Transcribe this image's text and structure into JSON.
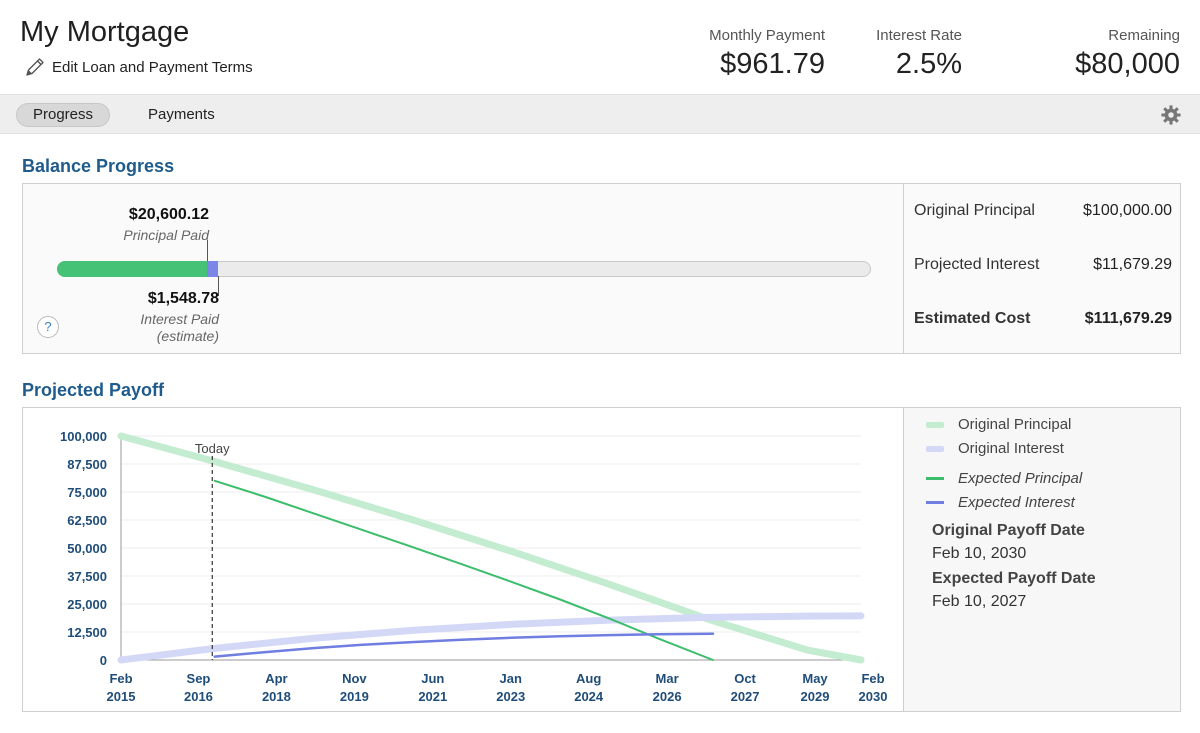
{
  "header": {
    "title": "My Mortgage",
    "edit_label": "Edit Loan and Payment Terms",
    "stats": {
      "monthly_payment_label": "Monthly Payment",
      "monthly_payment_value": "$961.79",
      "interest_rate_label": "Interest Rate",
      "interest_rate_value": "2.5%",
      "remaining_label": "Remaining",
      "remaining_value": "$80,000"
    }
  },
  "tabs": {
    "progress": "Progress",
    "payments": "Payments"
  },
  "balance": {
    "section_title": "Balance Progress",
    "principal_paid_amount": "$20,600.12",
    "principal_paid_label": "Principal Paid",
    "interest_paid_amount": "$1,548.78",
    "interest_paid_label": "Interest Paid",
    "interest_paid_note": "(estimate)",
    "principal_fraction": 0.184,
    "interest_fraction": 0.014,
    "help": "?",
    "summary": {
      "original_principal_label": "Original Principal",
      "original_principal_value": "$100,000.00",
      "projected_interest_label": "Projected Interest",
      "projected_interest_value": "$11,679.29",
      "estimated_cost_label": "Estimated Cost",
      "estimated_cost_value": "$111,679.29"
    }
  },
  "payoff": {
    "section_title": "Projected Payoff",
    "legend": {
      "original_principal": "Original Principal",
      "original_interest": "Original Interest",
      "expected_principal": "Expected Principal",
      "expected_interest": "Expected Interest"
    },
    "original_payoff_label": "Original Payoff Date",
    "original_payoff_value": "Feb 10, 2030",
    "expected_payoff_label": "Expected Payoff Date",
    "expected_payoff_value": "Feb 10, 2027",
    "colors": {
      "original_principal": "#c3ecd1",
      "original_interest": "#d4d8f7",
      "expected_principal": "#3cbd6c",
      "expected_interest": "#6f7ee0"
    }
  },
  "chart_data": {
    "type": "line",
    "today_label": "Today",
    "today_x": 2016.95,
    "ylim": [
      0,
      100000
    ],
    "xlim": [
      2015.1,
      2030.1
    ],
    "yticks": [
      "100,000",
      "87,500",
      "75,000",
      "62,500",
      "50,000",
      "37,500",
      "25,000",
      "12,500",
      "0"
    ],
    "ytick_values": [
      100000,
      87500,
      75000,
      62500,
      50000,
      37500,
      25000,
      12500,
      0
    ],
    "xticks": [
      {
        "month": "Feb",
        "year": "2015",
        "x": 2015.1
      },
      {
        "month": "Sep",
        "year": "2016",
        "x": 2016.67
      },
      {
        "month": "Apr",
        "year": "2018",
        "x": 2018.25
      },
      {
        "month": "Nov",
        "year": "2019",
        "x": 2019.83
      },
      {
        "month": "Jun",
        "year": "2021",
        "x": 2021.42
      },
      {
        "month": "Jan",
        "year": "2023",
        "x": 2023.0
      },
      {
        "month": "Aug",
        "year": "2024",
        "x": 2024.58
      },
      {
        "month": "Mar",
        "year": "2026",
        "x": 2026.17
      },
      {
        "month": "Oct",
        "year": "2027",
        "x": 2027.75
      },
      {
        "month": "May",
        "year": "2029",
        "x": 2029.33
      },
      {
        "month": "Feb",
        "year": "2030",
        "x": 2030.1
      }
    ],
    "series": [
      {
        "name": "Original Principal",
        "style": "original_principal",
        "x": [
          2015.1,
          2017,
          2019,
          2021,
          2023,
          2025,
          2027,
          2029,
          2030.1
        ],
        "y": [
          100000,
          88600,
          76000,
          62700,
          48600,
          33800,
          18200,
          4500,
          0
        ]
      },
      {
        "name": "Original Interest",
        "style": "original_interest",
        "x": [
          2015.1,
          2017,
          2019,
          2021,
          2023,
          2025,
          2027,
          2029,
          2030.1
        ],
        "y": [
          0,
          5200,
          9700,
          13200,
          15900,
          17800,
          19000,
          19600,
          19700
        ]
      },
      {
        "name": "Expected Principal",
        "style": "expected_principal",
        "x": [
          2017.0,
          2018,
          2019,
          2020,
          2021,
          2022,
          2023,
          2024,
          2025,
          2026,
          2027.1
        ],
        "y": [
          80000,
          73000,
          65500,
          58000,
          50500,
          42800,
          35000,
          27000,
          18500,
          9500,
          0
        ]
      },
      {
        "name": "Expected Interest",
        "style": "expected_interest",
        "x": [
          2017.0,
          2018,
          2019,
          2020,
          2021,
          2022,
          2023,
          2024,
          2025,
          2026,
          2027.1
        ],
        "y": [
          1500,
          3500,
          5300,
          6800,
          8000,
          9000,
          9900,
          10600,
          11100,
          11500,
          11700
        ]
      }
    ]
  }
}
